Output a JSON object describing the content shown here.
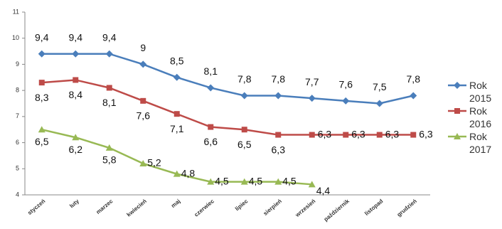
{
  "chart_data": {
    "type": "line",
    "categories": [
      "styczeń",
      "luty",
      "marzec",
      "kwiecień",
      "maj",
      "czerwiec",
      "lipiec",
      "sierpień",
      "wrzesień",
      "październik",
      "listopad",
      "grudzień"
    ],
    "series": [
      {
        "name": "Rok 2015",
        "color": "#4a7ebb",
        "marker": "diamond",
        "values": [
          9.4,
          9.4,
          9.4,
          9,
          8.5,
          8.1,
          7.8,
          7.8,
          7.7,
          7.6,
          7.5,
          7.8
        ],
        "value_labels": [
          "9,4",
          "9,4",
          "9,4",
          "9",
          "8,5",
          "8,1",
          "7,8",
          "7,8",
          "7,7",
          "7,6",
          "7,5",
          "7,8"
        ]
      },
      {
        "name": "Rok 2016",
        "color": "#be4b48",
        "marker": "square",
        "values": [
          8.3,
          8.4,
          8.1,
          7.6,
          7.1,
          6.6,
          6.5,
          6.3,
          6.3,
          6.3,
          6.3,
          6.3
        ],
        "value_labels": [
          "8,3",
          "8,4",
          "8,1",
          "7,6",
          "7,1",
          "6,6",
          "6,5",
          "6,3",
          "6,3",
          "6,3",
          "6,3",
          "6,3"
        ]
      },
      {
        "name": "Rok 2017",
        "color": "#98b954",
        "marker": "triangle",
        "values": [
          6.5,
          6.2,
          5.8,
          5.2,
          4.8,
          4.5,
          4.5,
          4.5,
          4.4,
          null,
          null,
          null
        ],
        "value_labels": [
          "6,5",
          "6,2",
          "5,8",
          "5,2",
          "4,8",
          "4,5",
          "4,5",
          "4,5",
          "4,4",
          null,
          null,
          null
        ]
      }
    ],
    "ylim": [
      4,
      11
    ],
    "yticks": [
      4,
      5,
      6,
      7,
      8,
      9,
      10,
      11
    ],
    "grid": false,
    "legend": "right"
  }
}
